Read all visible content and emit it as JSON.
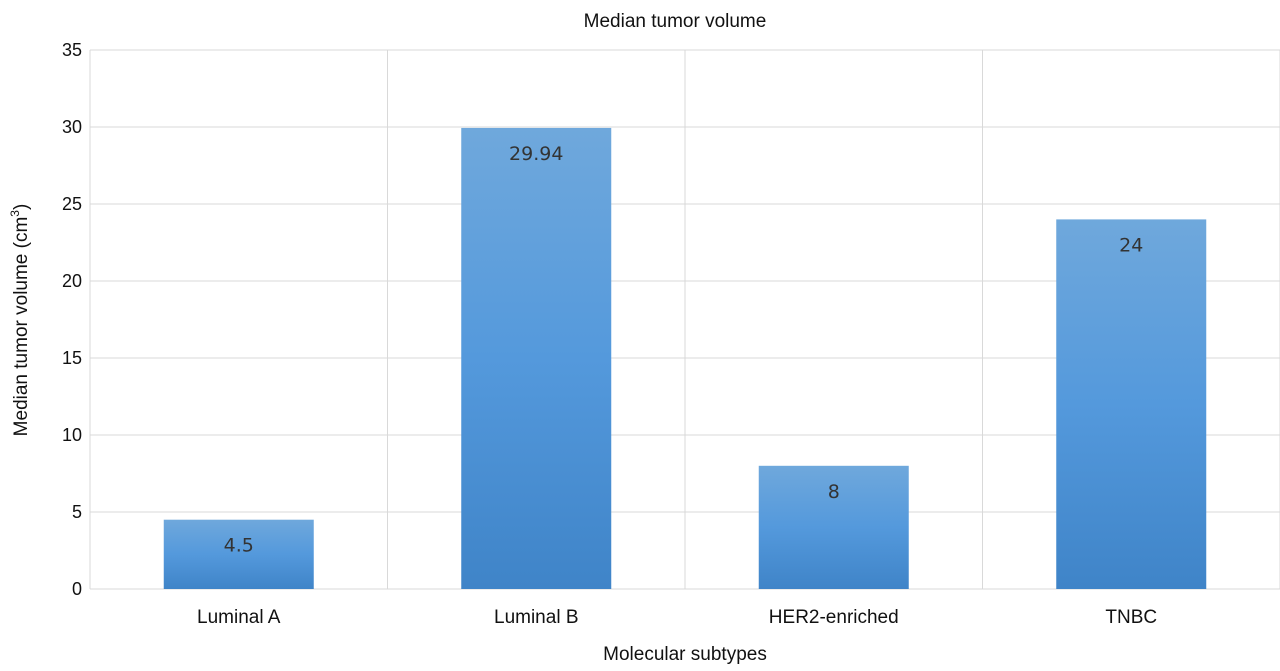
{
  "chart_data": {
    "type": "bar",
    "title": "Median tumor volume",
    "xlabel": "Molecular subtypes",
    "ylabel": {
      "prefix": "Median tumor volume (cm",
      "superscript": "3",
      "suffix": ")"
    },
    "categories": [
      "Luminal A",
      "Luminal B",
      "HER2-enriched",
      "TNBC"
    ],
    "values": [
      4.5,
      29.94,
      8,
      24
    ],
    "data_labels": [
      "4.5",
      "29.94",
      "8",
      "24"
    ],
    "ylim": [
      0,
      35
    ],
    "yticks": [
      0,
      5,
      10,
      15,
      20,
      25,
      30,
      35
    ],
    "grid": true,
    "legend": "none",
    "colors": {
      "bar_top": "#6fa8dc",
      "bar_mid": "#5499dc",
      "bar_bottom": "#3f84c8",
      "grid": "#d9d9d9"
    }
  }
}
